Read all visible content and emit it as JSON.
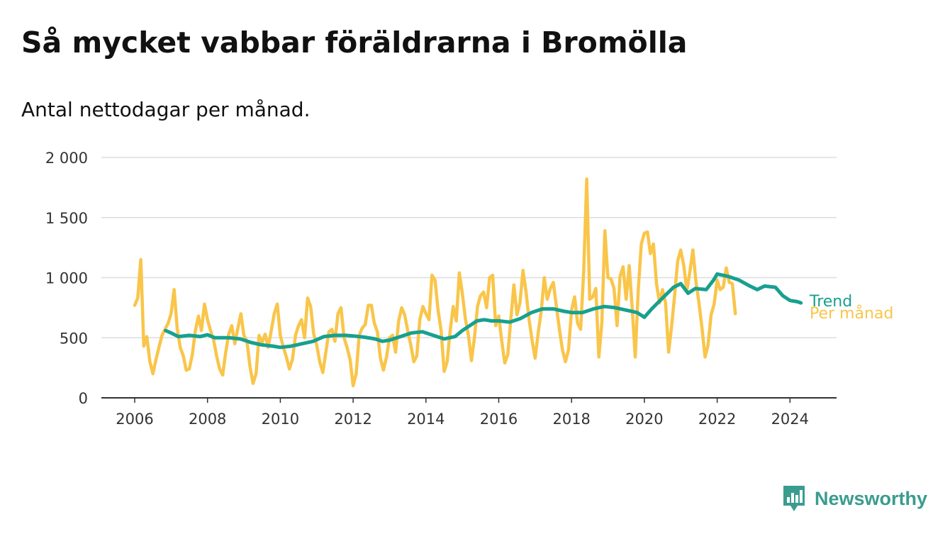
{
  "title": "Så mycket vabbar föräldrarna i Bromölla",
  "subtitle": "Antal nettodagar per månad.",
  "brand": "Newsworthy",
  "colors": {
    "monthly": "#f9c54a",
    "trend": "#17a08f",
    "grid": "#dddddd",
    "axis": "#333333",
    "brand": "#3a9c8f"
  },
  "chart_data": {
    "type": "line",
    "title": "Så mycket vabbar föräldrarna i Bromölla",
    "subtitle": "Antal nettodagar per månad.",
    "ylim": [
      0,
      2000
    ],
    "xlim": [
      2006,
      2024.6
    ],
    "yticks": [
      0,
      500,
      1000,
      1500,
      2000
    ],
    "ytick_labels": [
      "0",
      "500",
      "1 000",
      "1 500",
      "2 000"
    ],
    "xticks": [
      2006,
      2008,
      2010,
      2012,
      2014,
      2016,
      2018,
      2020,
      2022,
      2024
    ],
    "xtick_labels": [
      "2006",
      "2008",
      "2010",
      "2012",
      "2014",
      "2016",
      "2018",
      "2020",
      "2022",
      "2024"
    ],
    "grid": true,
    "legend": "inline-right",
    "series": [
      {
        "name": "Per månad",
        "color": "#f9c54a",
        "x_start": 2006.0,
        "x_step": 0.08333,
        "values": [
          770,
          830,
          1150,
          430,
          510,
          300,
          200,
          320,
          420,
          520,
          570,
          620,
          700,
          900,
          580,
          420,
          350,
          230,
          240,
          360,
          560,
          680,
          560,
          780,
          650,
          560,
          480,
          350,
          240,
          190,
          380,
          530,
          600,
          450,
          580,
          700,
          520,
          470,
          260,
          120,
          200,
          520,
          460,
          530,
          420,
          560,
          700,
          780,
          520,
          420,
          340,
          240,
          320,
          520,
          600,
          650,
          500,
          830,
          760,
          530,
          440,
          300,
          210,
          380,
          550,
          570,
          470,
          700,
          750,
          500,
          420,
          320,
          100,
          200,
          520,
          580,
          610,
          770,
          770,
          620,
          550,
          330,
          230,
          340,
          500,
          520,
          380,
          640,
          750,
          690,
          560,
          440,
          300,
          350,
          650,
          760,
          700,
          650,
          1020,
          980,
          730,
          560,
          220,
          300,
          560,
          760,
          640,
          1040,
          870,
          660,
          520,
          310,
          500,
          760,
          850,
          880,
          750,
          1000,
          1020,
          600,
          680,
          470,
          290,
          360,
          660,
          940,
          690,
          790,
          1060,
          880,
          650,
          480,
          330,
          540,
          720,
          1000,
          820,
          910,
          960,
          760,
          570,
          400,
          300,
          400,
          730,
          840,
          620,
          570,
          1050,
          1820,
          820,
          840,
          910,
          340,
          630,
          1390,
          1000,
          990,
          910,
          600,
          1010,
          1090,
          820,
          1100,
          740,
          340,
          900,
          1280,
          1370,
          1380,
          1200,
          1280,
          950,
          790,
          900,
          790,
          380,
          600,
          860,
          1140,
          1230,
          1100,
          890,
          1050,
          1230,
          970,
          790,
          580,
          340,
          440,
          690,
          780,
          980,
          900,
          920,
          1080,
          960,
          950,
          700
        ]
      },
      {
        "name": "Trend",
        "color": "#17a08f",
        "points": [
          [
            2006.85,
            560
          ],
          [
            2007.0,
            540
          ],
          [
            2007.2,
            510
          ],
          [
            2007.5,
            520
          ],
          [
            2007.8,
            510
          ],
          [
            2008.0,
            525
          ],
          [
            2008.2,
            500
          ],
          [
            2008.6,
            500
          ],
          [
            2008.9,
            490
          ],
          [
            2009.2,
            460
          ],
          [
            2009.5,
            440
          ],
          [
            2009.8,
            430
          ],
          [
            2010.0,
            420
          ],
          [
            2010.3,
            430
          ],
          [
            2010.6,
            450
          ],
          [
            2010.9,
            470
          ],
          [
            2011.2,
            510
          ],
          [
            2011.5,
            520
          ],
          [
            2011.8,
            520
          ],
          [
            2012.0,
            515
          ],
          [
            2012.3,
            505
          ],
          [
            2012.6,
            490
          ],
          [
            2012.8,
            470
          ],
          [
            2013.0,
            480
          ],
          [
            2013.3,
            510
          ],
          [
            2013.6,
            540
          ],
          [
            2013.9,
            550
          ],
          [
            2014.2,
            520
          ],
          [
            2014.5,
            490
          ],
          [
            2014.8,
            510
          ],
          [
            2015.0,
            560
          ],
          [
            2015.2,
            600
          ],
          [
            2015.4,
            640
          ],
          [
            2015.6,
            650
          ],
          [
            2015.8,
            640
          ],
          [
            2016.0,
            640
          ],
          [
            2016.3,
            630
          ],
          [
            2016.6,
            660
          ],
          [
            2016.9,
            710
          ],
          [
            2017.2,
            740
          ],
          [
            2017.5,
            740
          ],
          [
            2017.8,
            720
          ],
          [
            2018.0,
            710
          ],
          [
            2018.3,
            710
          ],
          [
            2018.6,
            740
          ],
          [
            2018.9,
            760
          ],
          [
            2019.2,
            750
          ],
          [
            2019.5,
            730
          ],
          [
            2019.8,
            710
          ],
          [
            2020.0,
            670
          ],
          [
            2020.2,
            740
          ],
          [
            2020.4,
            800
          ],
          [
            2020.6,
            860
          ],
          [
            2020.8,
            920
          ],
          [
            2021.0,
            950
          ],
          [
            2021.2,
            870
          ],
          [
            2021.4,
            910
          ],
          [
            2021.7,
            900
          ],
          [
            2021.9,
            980
          ],
          [
            2022.0,
            1030
          ],
          [
            2022.3,
            1010
          ],
          [
            2022.6,
            980
          ],
          [
            2022.9,
            930
          ],
          [
            2023.1,
            900
          ],
          [
            2023.3,
            930
          ],
          [
            2023.6,
            920
          ],
          [
            2023.8,
            850
          ],
          [
            2024.0,
            810
          ],
          [
            2024.2,
            800
          ],
          [
            2024.3,
            790
          ]
        ]
      }
    ]
  }
}
